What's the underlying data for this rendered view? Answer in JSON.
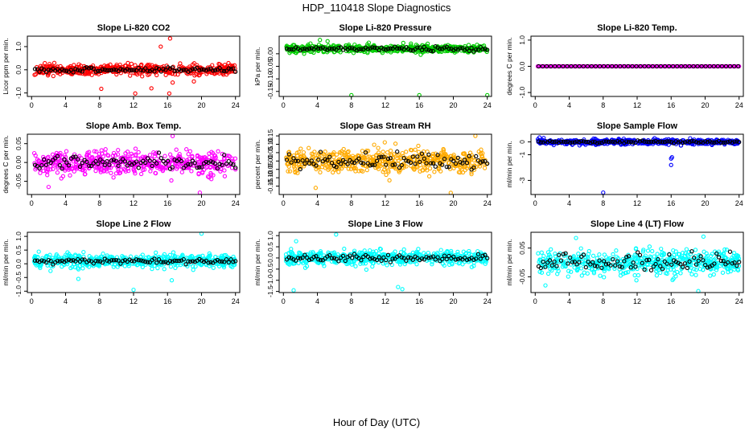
{
  "title": "HDP_110418  Slope Diagnostics",
  "xlabel": "Hour of Day (UTC)",
  "chart_data": [
    {
      "type": "scatter",
      "title": "Slope Li-820 CO2",
      "ylabel": "Licor ppm per min.",
      "ylim": [
        -1.15,
        1.45
      ],
      "yticks": [
        "-1.0",
        "0.0",
        "1.0"
      ],
      "ytick_values": [
        -1.0,
        0.0,
        1.0
      ],
      "xlim": [
        -0.5,
        24.5
      ],
      "xticks": [
        0,
        4,
        8,
        12,
        16,
        20,
        24
      ],
      "color": "#ff0000",
      "center": 0.0,
      "spread": 0.18,
      "black_spread": 0.09,
      "outliers": [
        [
          16.3,
          1.35
        ],
        [
          15.2,
          1.0
        ],
        [
          8.2,
          -0.82
        ],
        [
          12.2,
          -1.02
        ],
        [
          14.1,
          -0.8
        ],
        [
          16.6,
          -0.55
        ],
        [
          16.2,
          -1.02
        ],
        [
          19.1,
          -0.5
        ]
      ]
    },
    {
      "type": "scatter",
      "title": "Slope Li-820 Pressure",
      "ylabel": "kPa per min.",
      "ylim": [
        -0.17,
        0.07
      ],
      "yticks": [
        "-0.15",
        "-0.10",
        "-0.05",
        "0.00"
      ],
      "ytick_values": [
        -0.15,
        -0.1,
        -0.05,
        0.0
      ],
      "xlim": [
        -0.5,
        24.5
      ],
      "xticks": [
        0,
        4,
        8,
        12,
        16,
        20,
        24
      ],
      "color": "#00cc00",
      "center": 0.02,
      "spread": 0.012,
      "black_spread": 0.008,
      "outliers": [
        [
          8.0,
          -0.165
        ],
        [
          16.0,
          -0.165
        ],
        [
          24.0,
          -0.165
        ],
        [
          4.3,
          0.055
        ],
        [
          5.2,
          0.05
        ]
      ]
    },
    {
      "type": "scatter",
      "title": "Slope Li-820 Temp.",
      "ylabel": "degrees C per min.",
      "ylim": [
        -1.15,
        1.15
      ],
      "yticks": [
        "-1.0",
        "0.0",
        "1.0"
      ],
      "ytick_values": [
        -1.0,
        0.0,
        1.0
      ],
      "xlim": [
        -0.5,
        24.5
      ],
      "xticks": [
        0,
        4,
        8,
        12,
        16,
        20,
        24
      ],
      "color": "#ff00ff",
      "center": 0.0,
      "spread": 0.0,
      "black_spread": 0.0,
      "outliers": []
    },
    {
      "type": "scatter",
      "title": "Slope Amb. Box Temp.",
      "ylabel": "degrees C per min.",
      "ylim": [
        -0.085,
        0.075
      ],
      "yticks": [
        "-0.05",
        "0.00",
        "0.05"
      ],
      "ytick_values": [
        -0.05,
        0.0,
        0.05
      ],
      "xlim": [
        -0.5,
        24.5
      ],
      "xticks": [
        0,
        4,
        8,
        12,
        16,
        20,
        24
      ],
      "color": "#ff00ff",
      "center": 0.0,
      "spread": 0.025,
      "black_spread": 0.018,
      "outliers": [
        [
          19.8,
          -0.08
        ],
        [
          2.0,
          -0.065
        ],
        [
          16.6,
          0.07
        ]
      ]
    },
    {
      "type": "scatter",
      "title": "Slope Gas Stream RH",
      "ylabel": "percent per min.",
      "ylim": [
        -0.2,
        0.16
      ],
      "yticks": [
        "-0.15",
        "-0.10",
        "-0.05",
        "0.00",
        "0.05",
        "0.10",
        "0.15"
      ],
      "ytick_values": [
        -0.15,
        -0.1,
        -0.05,
        0.0,
        0.05,
        0.1,
        0.15
      ],
      "xlim": [
        -0.5,
        24.5
      ],
      "xticks": [
        0,
        4,
        8,
        12,
        16,
        20,
        24
      ],
      "color": "#ffaa00",
      "center": 0.0,
      "spread": 0.06,
      "black_spread": 0.04,
      "outliers": [
        [
          19.7,
          -0.19
        ],
        [
          22.6,
          0.15
        ],
        [
          3.8,
          -0.16
        ]
      ]
    },
    {
      "type": "scatter",
      "title": "Slope Sample Flow",
      "ylabel": "ml/min per min.",
      "ylim": [
        -4.1,
        0.6
      ],
      "yticks": [
        "-3",
        "-1",
        "0"
      ],
      "ytick_values": [
        -3,
        -1,
        0
      ],
      "xlim": [
        -0.5,
        24.5
      ],
      "xticks": [
        0,
        4,
        8,
        12,
        16,
        20,
        24
      ],
      "color": "#0000ff",
      "center": 0.0,
      "spread": 0.16,
      "black_spread": 0.08,
      "outliers": [
        [
          8.0,
          -3.95
        ],
        [
          16.0,
          -1.8
        ],
        [
          16.1,
          -1.2
        ],
        [
          16.0,
          -1.3
        ],
        [
          0.5,
          0.35
        ],
        [
          1.0,
          0.3
        ]
      ]
    },
    {
      "type": "scatter",
      "title": "Slope Line 2 Flow",
      "ylabel": "ml/min per min.",
      "ylim": [
        -1.05,
        1.15
      ],
      "yticks": [
        "-1.0",
        "-0.5",
        "0.0",
        "0.5",
        "1.0"
      ],
      "ytick_values": [
        -1.0,
        -0.5,
        0.0,
        0.5,
        1.0
      ],
      "xlim": [
        -0.5,
        24.5
      ],
      "xticks": [
        0,
        4,
        8,
        12,
        16,
        20,
        24
      ],
      "color": "#00ffff",
      "center": 0.1,
      "spread": 0.2,
      "black_spread": 0.08,
      "outliers": [
        [
          12.0,
          -0.95
        ],
        [
          20.0,
          1.1
        ],
        [
          16.5,
          -0.6
        ],
        [
          5.5,
          -0.55
        ]
      ]
    },
    {
      "type": "scatter",
      "title": "Slope Line 3 Flow",
      "ylabel": "ml/min per min.",
      "ylim": [
        -1.55,
        1.15
      ],
      "yticks": [
        "-1.5",
        "-1.0",
        "-0.5",
        "0.0",
        "0.5",
        "1.0"
      ],
      "ytick_values": [
        -1.5,
        -1.0,
        -0.5,
        0.0,
        0.5,
        1.0
      ],
      "xlim": [
        -0.5,
        24.5
      ],
      "xticks": [
        0,
        4,
        8,
        12,
        16,
        20,
        24
      ],
      "color": "#00ffff",
      "center": 0.0,
      "spread": 0.25,
      "black_spread": 0.15,
      "outliers": [
        [
          1.2,
          -1.45
        ],
        [
          13.5,
          -1.3
        ],
        [
          14.0,
          -1.4
        ],
        [
          6.2,
          1.05
        ],
        [
          1.5,
          0.75
        ]
      ]
    },
    {
      "type": "scatter",
      "title": "Slope Line 4 (LT) Flow",
      "ylabel": "ml/min per min.",
      "ylim": [
        -0.105,
        0.105
      ],
      "yticks": [
        "-0.05",
        "0.05"
      ],
      "ytick_values": [
        -0.05,
        0.05
      ],
      "xlim": [
        -0.5,
        24.5
      ],
      "xticks": [
        0,
        4,
        8,
        12,
        16,
        20,
        24
      ],
      "color": "#00ffff",
      "center": 0.0,
      "spread": 0.035,
      "black_spread": 0.025,
      "outliers": [
        [
          19.2,
          -0.1
        ],
        [
          1.2,
          -0.08
        ],
        [
          19.8,
          0.09
        ],
        [
          4.8,
          0.085
        ]
      ]
    }
  ]
}
